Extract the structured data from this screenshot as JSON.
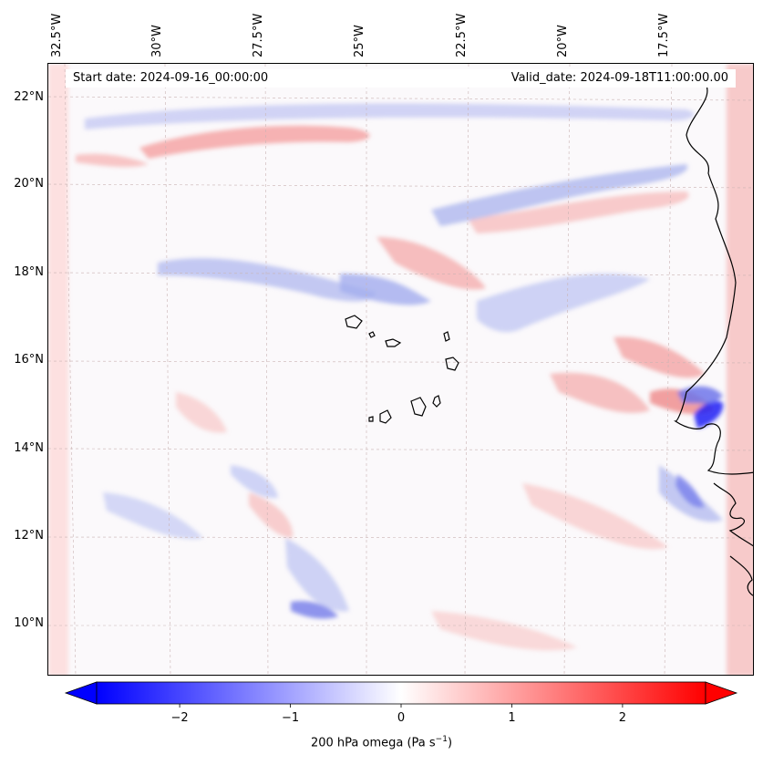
{
  "map": {
    "start_date": "Start date: 2024-09-16_00:00:00",
    "valid_date": "Valid_date: 2024-09-18T11:00:00.00",
    "lon_labels": [
      "32.5°W",
      "30°W",
      "27.5°W",
      "25°W",
      "22.5°W",
      "20°W",
      "17.5°W"
    ],
    "lat_labels": [
      "22°N",
      "20°N",
      "18°N",
      "16°N",
      "14°N",
      "12°N",
      "10°N"
    ],
    "field": "200 hPa omega",
    "colormap": "bwr",
    "colors": {
      "min": "#0000ff",
      "mid": "#ffffff",
      "max": "#ff0000",
      "coast": "#000000"
    }
  },
  "colorbar": {
    "ticks": [
      "−2",
      "−1",
      "0",
      "1",
      "2"
    ],
    "tick_values": [
      -2,
      -1,
      0,
      1,
      2
    ],
    "range": [
      -2.75,
      2.75
    ],
    "label_main": "200 hPa omega (Pa s",
    "label_sup": "−1",
    "label_end": ")"
  }
}
